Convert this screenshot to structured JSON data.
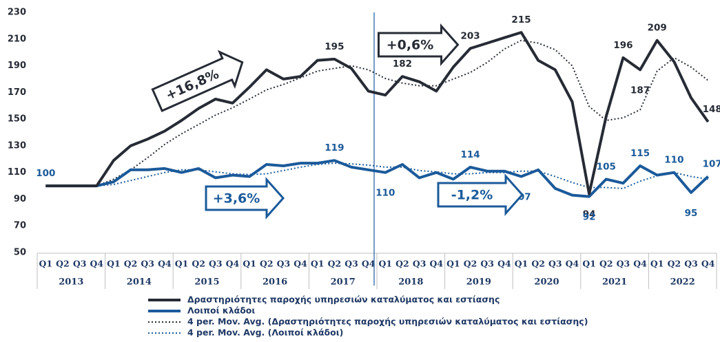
{
  "chart_data": {
    "type": "line",
    "categories": [
      "Q1",
      "Q2",
      "Q3",
      "Q4",
      "Q1",
      "Q2",
      "Q3",
      "Q4",
      "Q1",
      "Q2",
      "Q3",
      "Q4",
      "Q1",
      "Q2",
      "Q3",
      "Q4",
      "Q1",
      "Q2",
      "Q3",
      "Q4",
      "Q1",
      "Q2",
      "Q3",
      "Q4",
      "Q1",
      "Q2",
      "Q3",
      "Q4",
      "Q1",
      "Q2",
      "Q3",
      "Q4",
      "Q1",
      "Q2",
      "Q3",
      "Q4",
      "Q1",
      "Q2",
      "Q3",
      "Q4"
    ],
    "years": [
      "2013",
      "2014",
      "2015",
      "2016",
      "2017",
      "2018",
      "2019",
      "2020",
      "2021",
      "2022"
    ],
    "ylim": [
      50,
      230
    ],
    "yticks": [
      50,
      70,
      90,
      110,
      130,
      150,
      170,
      190,
      210,
      230
    ],
    "series": [
      {
        "name": "Δραστηριότητες παροχής υπηρεσιών καταλύματος και εστίασης",
        "color": "#262b35",
        "dotted": false,
        "values": [
          100,
          100,
          100,
          100,
          119,
          130,
          135,
          141,
          149,
          158,
          165,
          162,
          174,
          187,
          180,
          182,
          194,
          195,
          188,
          171,
          168,
          182,
          178,
          171,
          189,
          203,
          207,
          211,
          215,
          194,
          187,
          163,
          94,
          152,
          196,
          187,
          209,
          193,
          166,
          148
        ],
        "value_labels": [
          null,
          null,
          null,
          null,
          null,
          null,
          null,
          null,
          null,
          null,
          null,
          null,
          null,
          null,
          null,
          null,
          null,
          "195",
          null,
          null,
          null,
          "182",
          null,
          null,
          null,
          "203",
          null,
          null,
          "215",
          null,
          null,
          null,
          "94",
          null,
          "196",
          "187",
          "209",
          null,
          null,
          "148"
        ]
      },
      {
        "name": "Λοιποί κλάδοι",
        "color": "#1b5a9a",
        "dotted": false,
        "values": [
          100,
          100,
          100,
          100,
          103,
          112,
          112,
          113,
          110,
          113,
          106,
          108,
          107,
          116,
          115,
          117,
          117,
          119,
          114,
          112,
          110,
          116,
          106,
          110,
          105,
          114,
          111,
          111,
          107,
          112,
          98,
          93,
          92,
          105,
          102,
          115,
          108,
          110,
          95,
          107
        ],
        "value_labels": [
          "100",
          null,
          null,
          null,
          null,
          null,
          null,
          null,
          null,
          null,
          null,
          null,
          null,
          null,
          null,
          null,
          null,
          "119",
          null,
          null,
          "110",
          null,
          null,
          null,
          null,
          "114",
          null,
          null,
          "107",
          null,
          null,
          null,
          "92",
          "105",
          null,
          "115",
          null,
          "110",
          "95",
          "107"
        ]
      },
      {
        "name": "4 per. Mov. Avg. (Δραστηριότητες παροχής υπηρεσιών καταλύματος και εστίασης)",
        "color": "#262b35",
        "dotted": true,
        "values": [
          null,
          null,
          null,
          100,
          105,
          112,
          121,
          131,
          139,
          146,
          153,
          158.5,
          165,
          172,
          176,
          181,
          186,
          188,
          190,
          187,
          180.5,
          177,
          175,
          175,
          180,
          185,
          192.5,
          202.5,
          209,
          207,
          202,
          190,
          159.5,
          149,
          151,
          157,
          186,
          196,
          189,
          179
        ]
      },
      {
        "name": "4 per. Mov. Avg. (Λοιποί κλάδοι)",
        "color": "#1b5a9a",
        "dotted": true,
        "values": [
          null,
          null,
          null,
          100,
          101,
          104,
          107,
          110,
          112,
          112,
          110.5,
          109,
          108.5,
          109,
          111.5,
          114,
          116,
          117,
          116.5,
          115.5,
          114,
          114,
          111.5,
          110.5,
          109,
          109,
          110,
          110,
          111,
          111,
          107,
          102.5,
          98.75,
          98.75,
          98,
          103.5,
          107.5,
          110,
          107,
          105
        ]
      }
    ],
    "annotations": [
      "+16,8%",
      "+0,6%",
      "+3,6%",
      "-1,2%"
    ]
  }
}
